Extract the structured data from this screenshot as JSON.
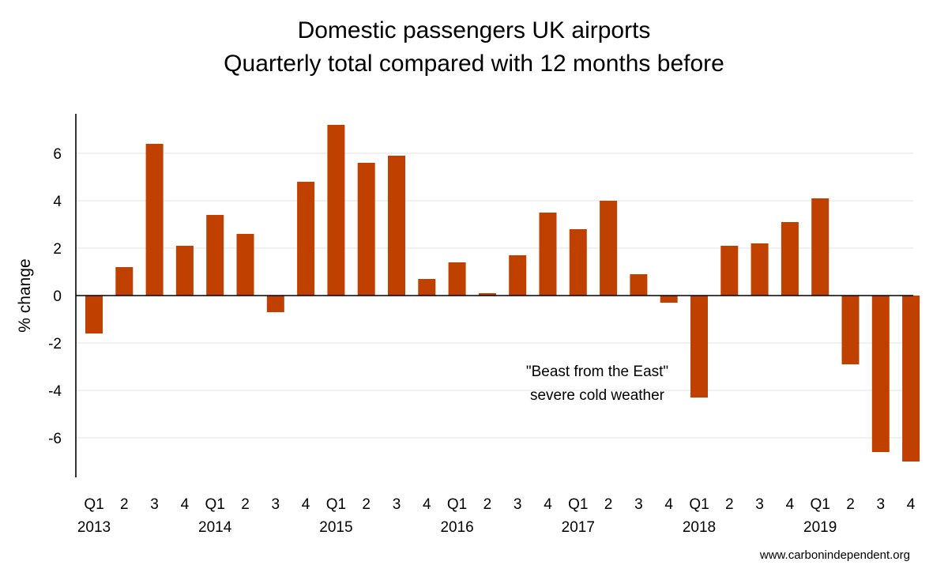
{
  "chart_data": {
    "type": "bar",
    "title_lines": [
      "Domestic passengers UK airports",
      "Quarterly total compared with 12 months before"
    ],
    "ylabel": "% change",
    "xlabel": "",
    "ylim": [
      -7.7,
      7.7
    ],
    "yticks": [
      -6,
      -4,
      -2,
      0,
      2,
      4,
      6
    ],
    "grid": true,
    "bar_color": "#c04000",
    "categories": [
      "Q1 2013",
      "2",
      "3",
      "4",
      "Q1 2014",
      "2",
      "3",
      "4",
      "Q1 2015",
      "2",
      "3",
      "4",
      "Q1 2016",
      "2",
      "3",
      "4",
      "Q1 2017",
      "2",
      "3",
      "4",
      "Q1 2018",
      "2",
      "3",
      "4",
      "Q1 2019",
      "2",
      "3",
      "4"
    ],
    "quarter_labels": [
      "Q1",
      "2",
      "3",
      "4",
      "Q1",
      "2",
      "3",
      "4",
      "Q1",
      "2",
      "3",
      "4",
      "Q1",
      "2",
      "3",
      "4",
      "Q1",
      "2",
      "3",
      "4",
      "Q1",
      "2",
      "3",
      "4",
      "Q1",
      "2",
      "3",
      "4"
    ],
    "year_labels": [
      "2013",
      "2014",
      "2015",
      "2016",
      "2017",
      "2018",
      "2019"
    ],
    "values": [
      -1.6,
      1.2,
      6.4,
      2.1,
      3.4,
      2.6,
      -0.7,
      4.8,
      7.2,
      5.6,
      5.9,
      0.7,
      1.4,
      0.1,
      1.7,
      3.5,
      2.8,
      4.0,
      0.9,
      -0.3,
      -4.3,
      2.1,
      2.2,
      3.1,
      4.1,
      -2.9,
      -6.6,
      -7.0
    ],
    "annotation_lines": [
      "\"Beast from the East\"",
      "severe cold weather"
    ]
  },
  "footer": {
    "source": "www.carbonindependent.org"
  }
}
